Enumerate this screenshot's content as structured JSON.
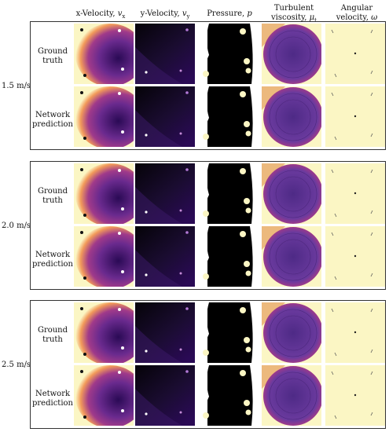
{
  "columns": [
    {
      "label": "x-Velocity,",
      "symbol": "v",
      "sub": "x"
    },
    {
      "label": "y-Velocity,",
      "symbol": "v",
      "sub": "y"
    },
    {
      "label": "Pressure,",
      "symbol": "p",
      "sub": ""
    },
    {
      "label": "Turbulent",
      "label2": "viscosity,",
      "symbol": "μ",
      "sub": "t"
    },
    {
      "label": "Angular",
      "label2": "velocity,",
      "symbol": "ω",
      "sub": ""
    }
  ],
  "groups": [
    {
      "speed": "1.5 m/s",
      "rows": [
        {
          "label1": "Ground",
          "label2": "truth"
        },
        {
          "label1": "Network",
          "label2": "prediction"
        }
      ]
    },
    {
      "speed": "2.0 m/s",
      "rows": [
        {
          "label1": "Ground",
          "label2": "truth"
        },
        {
          "label1": "Network",
          "label2": "prediction"
        }
      ]
    },
    {
      "speed": "2.5 m/s",
      "rows": [
        {
          "label1": "Ground",
          "label2": "truth"
        },
        {
          "label1": "Network",
          "label2": "prediction"
        }
      ]
    }
  ],
  "colors": {
    "cream": "#fbf6c4",
    "black": "#000000",
    "deep_purple": "#2a0a55",
    "purple": "#6a2a8e",
    "magenta": "#a03a8a",
    "orange": "#f29a5a"
  }
}
